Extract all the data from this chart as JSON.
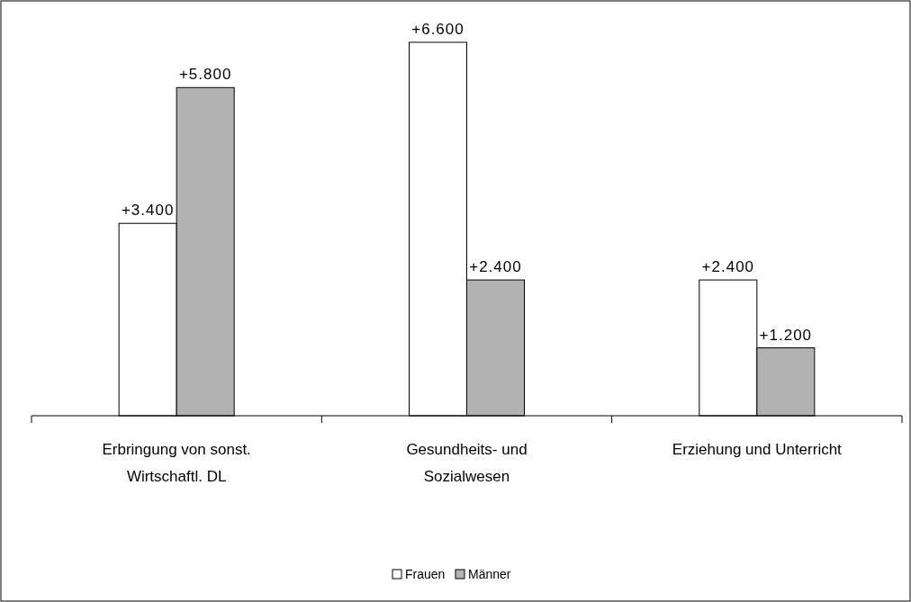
{
  "chart_data": {
    "type": "bar",
    "categories": [
      "Erbringung von sonst. Wirtschaftl. DL",
      "Gesundheits- und Sozialwesen",
      "Erziehung und Unterricht"
    ],
    "series": [
      {
        "name": "Frauen",
        "color": "#ffffff",
        "values": [
          3400,
          6600,
          2400
        ],
        "value_labels": [
          "+3.400",
          "+6.600",
          "+2.400"
        ]
      },
      {
        "name": "Männer",
        "color": "#b2b2b2",
        "values": [
          5800,
          2400,
          1200
        ],
        "value_labels": [
          "+5.800",
          "+2.400",
          "+1.200"
        ]
      }
    ],
    "legend": "bottom"
  }
}
